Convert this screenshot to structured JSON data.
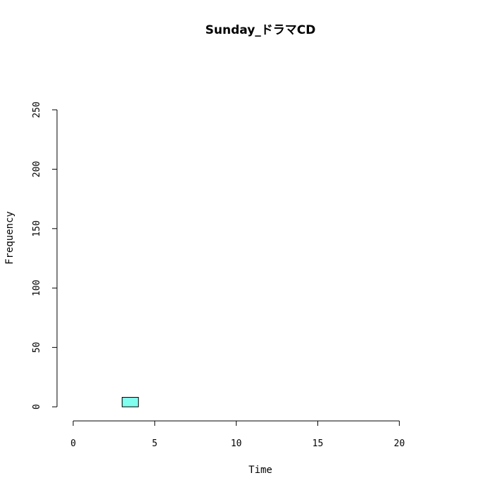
{
  "chart_data": {
    "type": "bar",
    "title": "Sunday_ドラマCD",
    "xlabel": "Time",
    "ylabel": "Frequency",
    "xlim": [
      0,
      24
    ],
    "ylim": [
      0,
      250
    ],
    "x_ticks": [
      0,
      5,
      10,
      15,
      20
    ],
    "y_ticks": [
      0,
      50,
      100,
      150,
      200,
      250
    ],
    "bin_width": 1,
    "bins": [
      {
        "start": 0,
        "value": 0
      },
      {
        "start": 1,
        "value": 0
      },
      {
        "start": 2,
        "value": 0
      },
      {
        "start": 3,
        "value": 8
      },
      {
        "start": 4,
        "value": 0
      },
      {
        "start": 5,
        "value": 0
      },
      {
        "start": 6,
        "value": 0
      },
      {
        "start": 7,
        "value": 0
      },
      {
        "start": 8,
        "value": 0
      },
      {
        "start": 9,
        "value": 0
      },
      {
        "start": 10,
        "value": 0
      },
      {
        "start": 11,
        "value": 0
      },
      {
        "start": 12,
        "value": 0
      },
      {
        "start": 13,
        "value": 0
      },
      {
        "start": 14,
        "value": 0
      },
      {
        "start": 15,
        "value": 0
      },
      {
        "start": 16,
        "value": 0
      },
      {
        "start": 17,
        "value": 0
      },
      {
        "start": 18,
        "value": 0
      },
      {
        "start": 19,
        "value": 0
      },
      {
        "start": 20,
        "value": 0
      },
      {
        "start": 21,
        "value": 0
      },
      {
        "start": 22,
        "value": 0
      },
      {
        "start": 23,
        "value": 0
      }
    ],
    "bar_color": "#80FFEE",
    "bar_stroke": "#000000"
  }
}
